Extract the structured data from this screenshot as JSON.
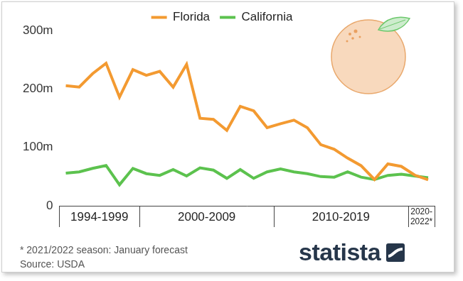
{
  "chart_data": {
    "type": "line",
    "categories": [
      "1994-1999",
      null,
      null,
      null,
      null,
      null,
      "2000-2009",
      null,
      null,
      null,
      null,
      null,
      null,
      null,
      null,
      null,
      "2010-2019",
      null,
      null,
      null,
      null,
      null,
      null,
      null,
      null,
      null,
      "2020-2022*",
      null
    ],
    "series": [
      {
        "name": "Florida",
        "color": "#f39a31",
        "values": [
          205.5,
          203.3,
          226.2,
          244,
          186,
          233,
          223.3,
          230,
          203,
          242,
          149.8,
          147.9,
          129,
          170.2,
          162.5,
          133.6,
          140.5,
          146.6,
          133.6,
          104.6,
          96.7,
          81.6,
          68.7,
          45,
          71.7,
          67.4,
          52.5,
          44.5
        ]
      },
      {
        "name": "California",
        "color": "#5cc24e",
        "values": [
          56,
          58,
          64,
          69,
          36,
          64,
          55,
          52,
          62,
          51,
          65,
          61,
          47,
          62,
          47,
          58,
          63,
          58,
          55,
          50,
          49,
          58,
          49,
          45,
          52,
          54,
          51,
          48
        ]
      }
    ],
    "ylim": [
      0,
      300
    ],
    "yticks": [
      0,
      {
        "value": 100,
        "label": "100m"
      },
      {
        "value": 200,
        "label": "200m"
      },
      {
        "value": 300,
        "label": "300m"
      }
    ],
    "grid": false,
    "legend": "top",
    "notes": [
      "* 2021/2022 season: January forecast",
      "Source: USDA"
    ],
    "logo": "statista"
  }
}
